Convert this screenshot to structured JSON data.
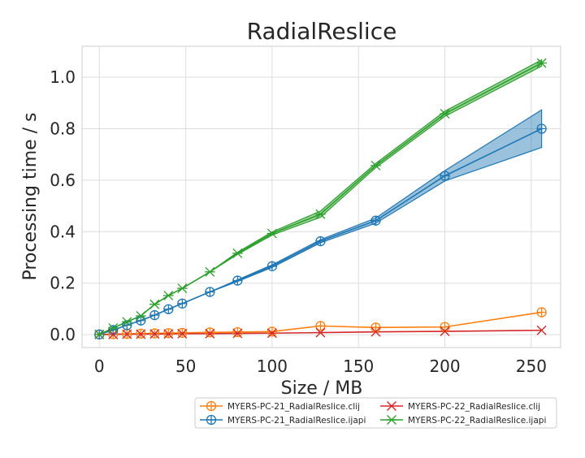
{
  "chart_data": {
    "type": "line",
    "title": "RadialReslice",
    "xlabel": "Size / MB",
    "ylabel": "Processing time / s",
    "xlim": [
      -10,
      267
    ],
    "ylim": [
      -0.05,
      1.12
    ],
    "xticks": [
      0,
      50,
      100,
      150,
      200,
      250
    ],
    "yticks": [
      0.0,
      0.2,
      0.4,
      0.6,
      0.8,
      1.0
    ],
    "xtick_labels": [
      "0",
      "50",
      "100",
      "150",
      "200",
      "250"
    ],
    "ytick_labels": [
      "0.0",
      "0.2",
      "0.4",
      "0.6",
      "0.8",
      "1.0"
    ],
    "grid": true,
    "legend_position": "bottom-right, below plot",
    "series": [
      {
        "name": "MYERS-PC-21_RadialReslice.clij",
        "color": "#ff7f0e",
        "marker": "circle-plus",
        "x": [
          0,
          8,
          16,
          24,
          32,
          40,
          48,
          64,
          80,
          100,
          128,
          160,
          200,
          256
        ],
        "y": [
          0.001,
          0.002,
          0.003,
          0.004,
          0.005,
          0.006,
          0.007,
          0.009,
          0.01,
          0.012,
          0.034,
          0.028,
          0.03,
          0.087
        ]
      },
      {
        "name": "MYERS-PC-21_RadialReslice.ijapi",
        "color": "#1f77b4",
        "marker": "circle-plus",
        "x": [
          0,
          8,
          16,
          24,
          32,
          40,
          48,
          64,
          80,
          100,
          128,
          160,
          200,
          256
        ],
        "y": [
          0.001,
          0.018,
          0.037,
          0.055,
          0.076,
          0.099,
          0.121,
          0.166,
          0.21,
          0.266,
          0.363,
          0.443,
          0.617,
          0.8
        ],
        "band_halfwidth": [
          0,
          0,
          0,
          0,
          0,
          0,
          0,
          0,
          0.003,
          0.005,
          0.006,
          0.01,
          0.02,
          0.073
        ]
      },
      {
        "name": "MYERS-PC-22_RadialReslice.clij",
        "color": "#d62728",
        "marker": "x",
        "x": [
          0,
          8,
          16,
          24,
          32,
          40,
          48,
          64,
          80,
          100,
          128,
          160,
          200,
          256
        ],
        "y": [
          0.001,
          0.001,
          0.002,
          0.002,
          0.003,
          0.003,
          0.004,
          0.004,
          0.005,
          0.006,
          0.008,
          0.011,
          0.013,
          0.017
        ]
      },
      {
        "name": "MYERS-PC-22_RadialReslice.ijapi",
        "color": "#2ca02c",
        "marker": "asterisk",
        "x": [
          0,
          8,
          16,
          24,
          32,
          40,
          48,
          64,
          80,
          100,
          128,
          160,
          200,
          256
        ],
        "y": [
          0.001,
          0.026,
          0.05,
          0.073,
          0.118,
          0.152,
          0.18,
          0.244,
          0.316,
          0.393,
          0.468,
          0.657,
          0.858,
          1.055
        ],
        "band_halfwidth": [
          0,
          0,
          0,
          0,
          0,
          0,
          0,
          0,
          0.004,
          0.006,
          0.012,
          0.008,
          0.01,
          0.012
        ]
      }
    ]
  }
}
